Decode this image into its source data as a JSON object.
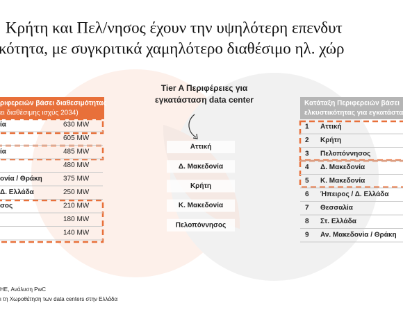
{
  "header": {
    "title_lines": [
      "Κρήτη και Πελ/νησος έχουν την υψηλότερη επενδυτ",
      "κότητα, με συγκριτικά χαμηλότερο διαθέσιμο ηλ. χώρ"
    ]
  },
  "left_table": {
    "header_lines": [
      "ριφερειών βάσει διαθεσιμότητας",
      "ει διαθέσιμης ισχύς 2034)"
    ],
    "rows": [
      {
        "label": "ία",
        "value": "630 MW"
      },
      {
        "value": "605 MW"
      },
      {
        "label": "ία",
        "value": "485 MW"
      },
      {
        "value": "480 MW"
      },
      {
        "label": "ονία / Θράκη",
        "value": "375 MW"
      },
      {
        "label": "Δ. Ελλάδα",
        "value": "250 MW"
      },
      {
        "label": "σος",
        "value": "210 MW"
      },
      {
        "value": "180 MW"
      },
      {
        "value": "140 MW"
      }
    ]
  },
  "center": {
    "title_lines": [
      "Tier A Περιφέρειες για",
      "εγκατάσταση data center"
    ],
    "items": [
      "Αττική",
      "Δ. Μακεδονία",
      "Κρήτη",
      "Κ. Μακεδονία",
      "Πελοπόννησος"
    ]
  },
  "right_table": {
    "header_lines": [
      "Κατάταξη Περιφερειών βάσει",
      "ελκυστικότητας για εγκατάστα"
    ],
    "rows": [
      {
        "rank": "1",
        "name": "Αττική"
      },
      {
        "rank": "2",
        "name": "Κρήτη"
      },
      {
        "rank": "3",
        "name": "Πελοπόννησος"
      },
      {
        "rank": "4",
        "name": "Δ. Μακεδονία"
      },
      {
        "rank": "5",
        "name": "Κ. Μακεδονία"
      },
      {
        "rank": "6",
        "name": "Ήπειρος / Δ. Ελλάδα"
      },
      {
        "rank": "7",
        "name": "Θεσσαλία"
      },
      {
        "rank": "8",
        "name": "Στ. Ελλάδα"
      },
      {
        "rank": "9",
        "name": "Αν. Μακεδονία / Θράκη"
      }
    ]
  },
  "footnotes": [
    "HE, Ανάλυση PwC",
    "ι τη Χωροθέτηση των data centers στην Ελλάδα"
  ]
}
